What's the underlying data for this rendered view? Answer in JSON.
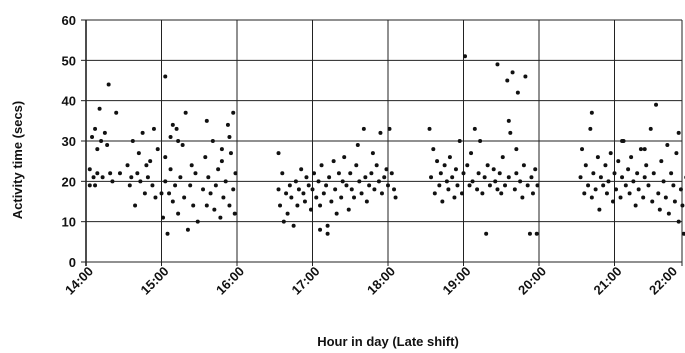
{
  "chart_data": {
    "type": "scatter",
    "xlabel": "Hour in day (Late shift)",
    "ylabel": "Activity time (secs)",
    "xlim": [
      14,
      22
    ],
    "ylim": [
      0,
      60
    ],
    "yticks": [
      0,
      10,
      20,
      30,
      40,
      50,
      60
    ],
    "xticks": [
      "14:00",
      "15:00",
      "16:00",
      "17:00",
      "18:00",
      "19:00",
      "20:00",
      "21:00",
      "22:00"
    ],
    "grid": true,
    "marker_color": "#111111",
    "points": [
      [
        14.05,
        19
      ],
      [
        14.05,
        23
      ],
      [
        14.08,
        31
      ],
      [
        14.1,
        21
      ],
      [
        14.12,
        33
      ],
      [
        14.12,
        19
      ],
      [
        14.15,
        28
      ],
      [
        14.15,
        22
      ],
      [
        14.18,
        38
      ],
      [
        14.2,
        30
      ],
      [
        14.22,
        21
      ],
      [
        14.25,
        32
      ],
      [
        14.28,
        29
      ],
      [
        14.3,
        44
      ],
      [
        14.32,
        22
      ],
      [
        14.35,
        20
      ],
      [
        14.4,
        37
      ],
      [
        14.45,
        22
      ],
      [
        14.55,
        24
      ],
      [
        14.58,
        19
      ],
      [
        14.6,
        21
      ],
      [
        14.62,
        30
      ],
      [
        14.65,
        14
      ],
      [
        14.68,
        22
      ],
      [
        14.7,
        27
      ],
      [
        14.72,
        20
      ],
      [
        14.75,
        32
      ],
      [
        14.78,
        17
      ],
      [
        14.8,
        24
      ],
      [
        14.82,
        21
      ],
      [
        14.85,
        25
      ],
      [
        14.88,
        19
      ],
      [
        14.9,
        33
      ],
      [
        14.92,
        16
      ],
      [
        14.95,
        28
      ],
      [
        15.0,
        17
      ],
      [
        15.02,
        11
      ],
      [
        15.05,
        20
      ],
      [
        15.05,
        26
      ],
      [
        15.08,
        7
      ],
      [
        15.1,
        17
      ],
      [
        15.12,
        23
      ],
      [
        15.12,
        31
      ],
      [
        15.15,
        15
      ],
      [
        15.18,
        19
      ],
      [
        15.2,
        33
      ],
      [
        15.22,
        12
      ],
      [
        15.25,
        21
      ],
      [
        15.28,
        29
      ],
      [
        15.3,
        16
      ],
      [
        15.32,
        37
      ],
      [
        15.35,
        8
      ],
      [
        15.38,
        19
      ],
      [
        15.4,
        24
      ],
      [
        15.42,
        14
      ],
      [
        15.45,
        22
      ],
      [
        15.48,
        10
      ],
      [
        15.55,
        18
      ],
      [
        15.58,
        26
      ],
      [
        15.6,
        14
      ],
      [
        15.62,
        21
      ],
      [
        15.65,
        17
      ],
      [
        15.68,
        30
      ],
      [
        15.7,
        13
      ],
      [
        15.72,
        19
      ],
      [
        15.75,
        23
      ],
      [
        15.78,
        11
      ],
      [
        15.8,
        25
      ],
      [
        15.82,
        16
      ],
      [
        15.85,
        20
      ],
      [
        15.88,
        34
      ],
      [
        15.9,
        14
      ],
      [
        15.92,
        27
      ],
      [
        15.95,
        18
      ],
      [
        15.97,
        12
      ],
      [
        15.98,
        22
      ],
      [
        15.05,
        46
      ],
      [
        15.15,
        34
      ],
      [
        15.22,
        30
      ],
      [
        15.6,
        35
      ],
      [
        15.8,
        28
      ],
      [
        15.9,
        31
      ],
      [
        15.95,
        37
      ],
      [
        16.55,
        18
      ],
      [
        16.57,
        14
      ],
      [
        16.6,
        22
      ],
      [
        16.62,
        10
      ],
      [
        16.65,
        17
      ],
      [
        16.67,
        12
      ],
      [
        16.7,
        19
      ],
      [
        16.72,
        16
      ],
      [
        16.75,
        9
      ],
      [
        16.78,
        20
      ],
      [
        16.8,
        14
      ],
      [
        16.82,
        18
      ],
      [
        16.85,
        23
      ],
      [
        16.88,
        17
      ],
      [
        16.9,
        15
      ],
      [
        16.92,
        21
      ],
      [
        16.95,
        19
      ],
      [
        16.98,
        13
      ],
      [
        17.0,
        18
      ],
      [
        17.02,
        22
      ],
      [
        17.05,
        16
      ],
      [
        17.08,
        20
      ],
      [
        17.1,
        14
      ],
      [
        17.12,
        24
      ],
      [
        17.15,
        17
      ],
      [
        17.18,
        19
      ],
      [
        17.2,
        7
      ],
      [
        17.22,
        21
      ],
      [
        17.25,
        15
      ],
      [
        17.28,
        25
      ],
      [
        17.3,
        18
      ],
      [
        17.32,
        12
      ],
      [
        17.35,
        22
      ],
      [
        17.38,
        16
      ],
      [
        17.4,
        20
      ],
      [
        17.42,
        26
      ],
      [
        17.45,
        19
      ],
      [
        17.48,
        13
      ],
      [
        17.5,
        22
      ],
      [
        17.52,
        18
      ],
      [
        17.55,
        16
      ],
      [
        17.58,
        24
      ],
      [
        17.6,
        29
      ],
      [
        17.62,
        20
      ],
      [
        17.65,
        17
      ],
      [
        17.68,
        33
      ],
      [
        17.7,
        21
      ],
      [
        17.72,
        15
      ],
      [
        17.75,
        19
      ],
      [
        17.78,
        22
      ],
      [
        17.8,
        27
      ],
      [
        17.82,
        18
      ],
      [
        17.85,
        24
      ],
      [
        17.88,
        20
      ],
      [
        17.9,
        32
      ],
      [
        17.92,
        17
      ],
      [
        17.95,
        21
      ],
      [
        17.98,
        23
      ],
      [
        18.0,
        19
      ],
      [
        18.02,
        33
      ],
      [
        18.05,
        22
      ],
      [
        18.08,
        18
      ],
      [
        18.1,
        16
      ],
      [
        16.55,
        27
      ],
      [
        17.1,
        8
      ],
      [
        17.2,
        9
      ],
      [
        18.55,
        33
      ],
      [
        18.57,
        21
      ],
      [
        18.6,
        28
      ],
      [
        18.62,
        17
      ],
      [
        18.65,
        25
      ],
      [
        18.68,
        19
      ],
      [
        18.7,
        22
      ],
      [
        18.72,
        15
      ],
      [
        18.75,
        24
      ],
      [
        18.78,
        20
      ],
      [
        18.8,
        18
      ],
      [
        18.82,
        26
      ],
      [
        18.85,
        21
      ],
      [
        18.88,
        16
      ],
      [
        18.9,
        23
      ],
      [
        18.92,
        19
      ],
      [
        18.95,
        30
      ],
      [
        18.98,
        17
      ],
      [
        19.0,
        22
      ],
      [
        19.02,
        51
      ],
      [
        19.05,
        24
      ],
      [
        19.08,
        19
      ],
      [
        19.1,
        27
      ],
      [
        19.12,
        20
      ],
      [
        19.15,
        33
      ],
      [
        19.18,
        18
      ],
      [
        19.2,
        22
      ],
      [
        19.22,
        30
      ],
      [
        19.25,
        17
      ],
      [
        19.28,
        21
      ],
      [
        19.3,
        7
      ],
      [
        19.32,
        24
      ],
      [
        19.35,
        19
      ],
      [
        19.4,
        23
      ],
      [
        19.42,
        20
      ],
      [
        19.45,
        18
      ],
      [
        19.48,
        22
      ],
      [
        19.5,
        17
      ],
      [
        19.52,
        26
      ],
      [
        19.55,
        19
      ],
      [
        19.58,
        45
      ],
      [
        19.6,
        21
      ],
      [
        19.62,
        32
      ],
      [
        19.65,
        47
      ],
      [
        19.68,
        18
      ],
      [
        19.7,
        22
      ],
      [
        19.72,
        42
      ],
      [
        19.75,
        20
      ],
      [
        19.78,
        16
      ],
      [
        19.8,
        24
      ],
      [
        19.82,
        46
      ],
      [
        19.85,
        19
      ],
      [
        19.88,
        7
      ],
      [
        19.9,
        21
      ],
      [
        19.92,
        17
      ],
      [
        19.95,
        23
      ],
      [
        19.97,
        7
      ],
      [
        19.98,
        19
      ],
      [
        19.45,
        49
      ],
      [
        19.6,
        35
      ],
      [
        19.7,
        28
      ],
      [
        20.55,
        21
      ],
      [
        20.57,
        28
      ],
      [
        20.6,
        17
      ],
      [
        20.62,
        24
      ],
      [
        20.65,
        19
      ],
      [
        20.68,
        33
      ],
      [
        20.7,
        16
      ],
      [
        20.72,
        22
      ],
      [
        20.75,
        18
      ],
      [
        20.78,
        26
      ],
      [
        20.8,
        13
      ],
      [
        20.82,
        21
      ],
      [
        20.85,
        19
      ],
      [
        20.88,
        24
      ],
      [
        20.9,
        17
      ],
      [
        20.92,
        20
      ],
      [
        20.95,
        27
      ],
      [
        20.98,
        15
      ],
      [
        21.0,
        22
      ],
      [
        21.02,
        18
      ],
      [
        21.05,
        25
      ],
      [
        21.08,
        16
      ],
      [
        21.1,
        21
      ],
      [
        21.12,
        30
      ],
      [
        21.15,
        19
      ],
      [
        21.18,
        23
      ],
      [
        21.2,
        17
      ],
      [
        21.22,
        26
      ],
      [
        21.25,
        20
      ],
      [
        21.28,
        14
      ],
      [
        21.3,
        22
      ],
      [
        21.32,
        18
      ],
      [
        21.35,
        28
      ],
      [
        21.38,
        16
      ],
      [
        21.4,
        21
      ],
      [
        21.42,
        24
      ],
      [
        21.45,
        19
      ],
      [
        21.48,
        33
      ],
      [
        21.5,
        15
      ],
      [
        21.52,
        22
      ],
      [
        21.55,
        39
      ],
      [
        21.58,
        17
      ],
      [
        21.6,
        13
      ],
      [
        21.62,
        25
      ],
      [
        21.65,
        20
      ],
      [
        21.68,
        16
      ],
      [
        21.7,
        29
      ],
      [
        21.72,
        12
      ],
      [
        21.75,
        22
      ],
      [
        21.78,
        19
      ],
      [
        21.8,
        15
      ],
      [
        21.82,
        27
      ],
      [
        21.85,
        10
      ],
      [
        21.88,
        18
      ],
      [
        21.9,
        14
      ],
      [
        21.92,
        7
      ],
      [
        21.95,
        21
      ],
      [
        21.97,
        16
      ],
      [
        21.98,
        36
      ],
      [
        20.7,
        37
      ],
      [
        21.1,
        30
      ],
      [
        21.4,
        28
      ],
      [
        21.85,
        32
      ]
    ]
  }
}
